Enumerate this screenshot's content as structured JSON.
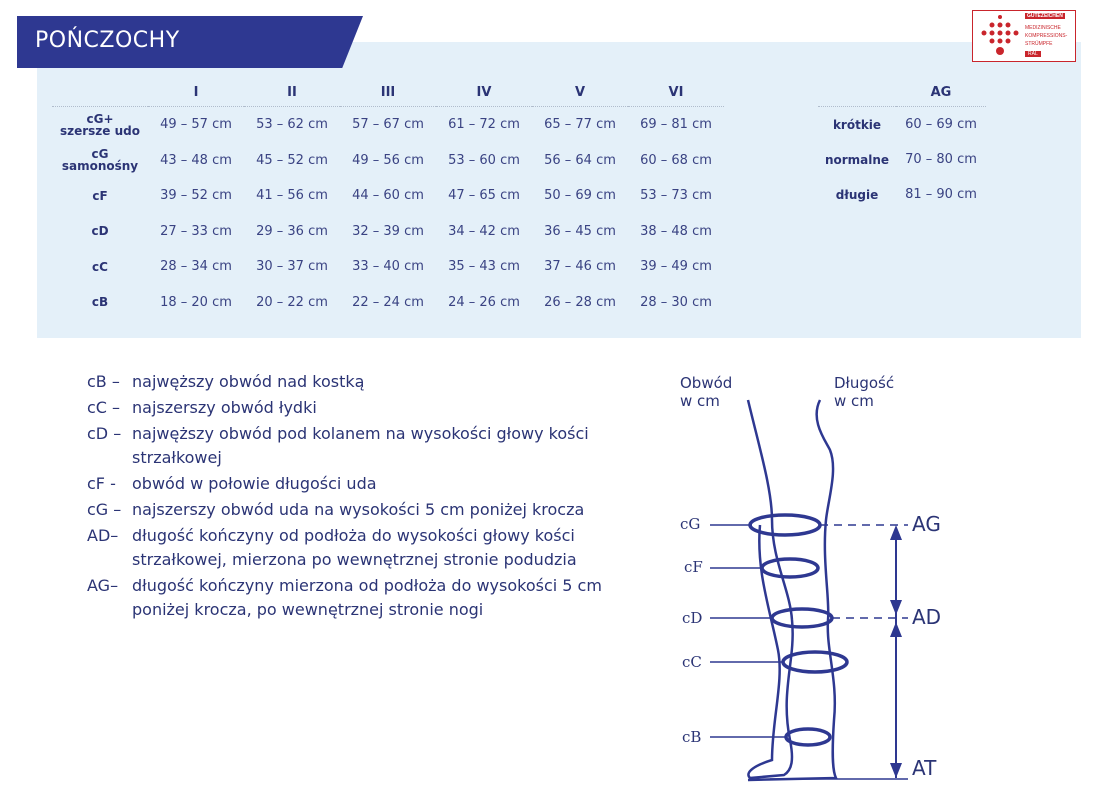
{
  "title": "POŃCZOCHY",
  "logo": {
    "lines": [
      "GÜTEZEICHEN",
      "MEDIZINISCHE",
      "KOMPRESSIONS-",
      "STRÜMPFE",
      "RAL"
    ],
    "color": "#c9252c"
  },
  "colors": {
    "banner": "#2e3891",
    "panel": "#e4f0f9",
    "text": "#2b3475"
  },
  "table": {
    "columns": [
      "I",
      "II",
      "III",
      "IV",
      "V",
      "VI"
    ],
    "rows": [
      {
        "label": "cG+",
        "sub": "szersze udo",
        "values": [
          "49 – 57 cm",
          "53 – 62 cm",
          "57 – 67 cm",
          "61 – 72 cm",
          "65 – 77 cm",
          "69 – 81 cm"
        ]
      },
      {
        "label": "cG",
        "sub": "samonośny",
        "values": [
          "43 – 48 cm",
          "45 – 52 cm",
          "49 – 56 cm",
          "53 – 60 cm",
          "56 – 64 cm",
          "60 – 68 cm"
        ]
      },
      {
        "label": "cF",
        "sub": "",
        "values": [
          "39 – 52 cm",
          "41 – 56 cm",
          "44 – 60 cm",
          "47 – 65 cm",
          "50 – 69 cm",
          "53 – 73 cm"
        ]
      },
      {
        "label": "cD",
        "sub": "",
        "values": [
          "27 – 33 cm",
          "29 – 36 cm",
          "32 – 39 cm",
          "34 – 42 cm",
          "36 – 45 cm",
          "38 – 48 cm"
        ]
      },
      {
        "label": "cC",
        "sub": "",
        "values": [
          "28 – 34 cm",
          "30 – 37 cm",
          "33 – 40 cm",
          "35 – 43 cm",
          "37 – 46 cm",
          "39 – 49 cm"
        ]
      },
      {
        "label": "cB",
        "sub": "",
        "values": [
          "18 – 20 cm",
          "20 – 22 cm",
          "22 – 24 cm",
          "24 – 26 cm",
          "26 – 28 cm",
          "28 – 30 cm"
        ]
      }
    ]
  },
  "ag_table": {
    "header": "AG",
    "rows": [
      {
        "label": "krótkie",
        "value": "60 – 69 cm"
      },
      {
        "label": "normalne",
        "value": "70 – 80 cm"
      },
      {
        "label": "długie",
        "value": "81 – 90 cm"
      }
    ]
  },
  "legend": [
    {
      "key": "cB –",
      "text": "najwęższy obwód nad kostką"
    },
    {
      "key": "cC –",
      "text": "najszerszy obwód łydki"
    },
    {
      "key": "cD –",
      "text": "najwęższy obwód pod kolanem na wysokości głowy kości strzałkowej"
    },
    {
      "key": "cF -",
      "text": "obwód w połowie długości uda"
    },
    {
      "key": "cG –",
      "text": "najszerszy obwód uda na wysokości 5 cm poniżej krocza"
    },
    {
      "key": "AD–",
      "text": "długość kończyny od podłoża do wysokości głowy kości strzałkowej, mierzona po wewnętrznej stronie podudzia"
    },
    {
      "key": "AG–",
      "text": "długość kończyny mierzona od podłoża do wysokości 5 cm poniżej krocza, po wewnętrznej stronie nogi"
    }
  ],
  "diagram": {
    "circ_title": "Obwód w cm",
    "len_title": "Długość w cm",
    "circ_labels": [
      "cG",
      "cF",
      "cD",
      "cC",
      "cB"
    ],
    "len_labels": [
      "AG",
      "AD",
      "AT"
    ]
  }
}
